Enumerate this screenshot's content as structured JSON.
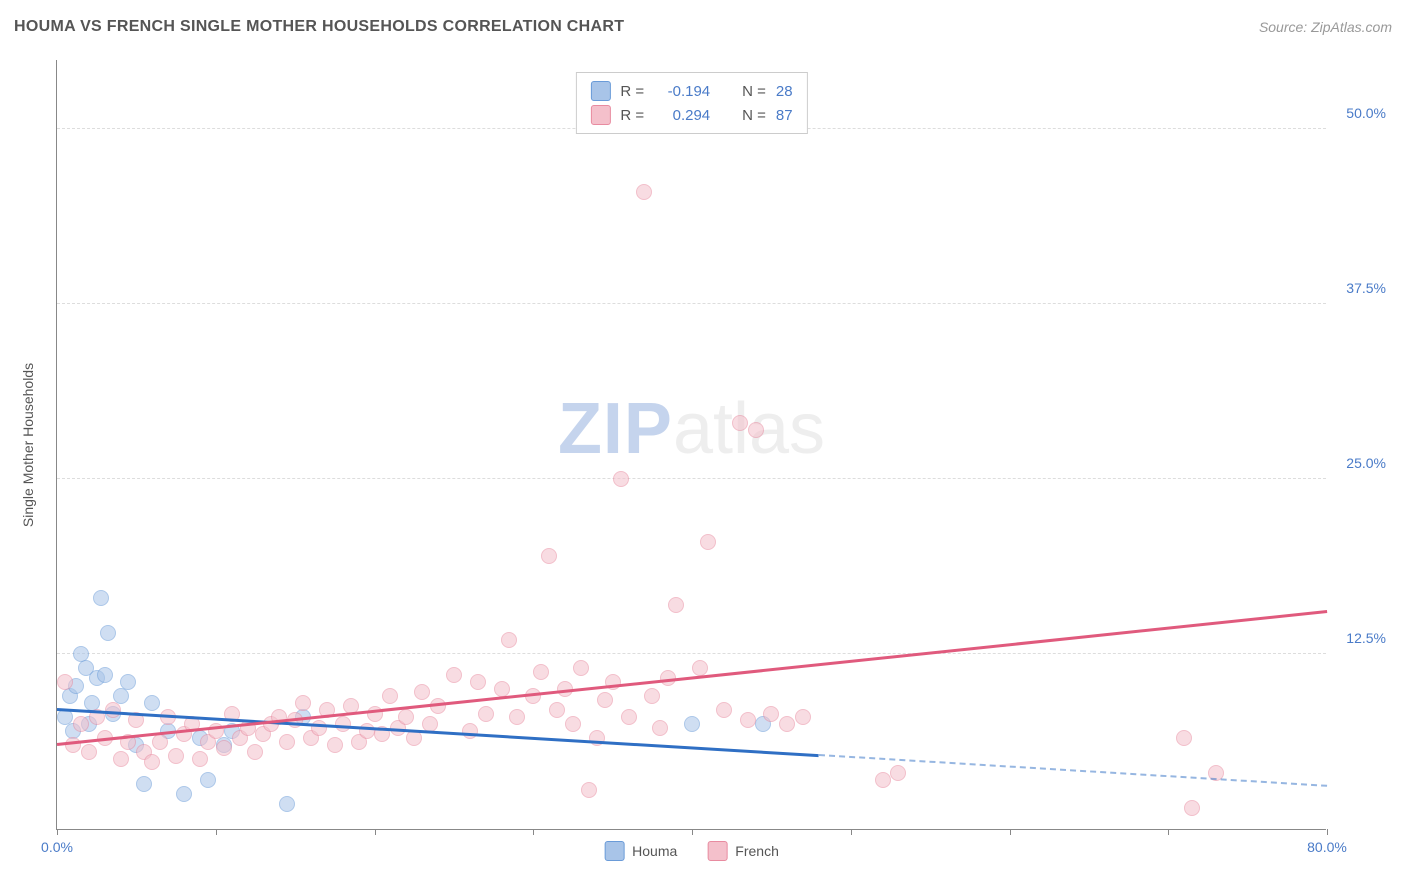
{
  "title": "HOUMA VS FRENCH SINGLE MOTHER HOUSEHOLDS CORRELATION CHART",
  "source": "Source: ZipAtlas.com",
  "watermark": {
    "zip": "ZIP",
    "atlas": "atlas"
  },
  "chart": {
    "type": "scatter",
    "background_color": "#ffffff",
    "grid_color": "#dddddd",
    "axis_color": "#888888",
    "ylabel": "Single Mother Households",
    "label_fontsize": 14,
    "xlim": [
      0,
      80
    ],
    "ylim": [
      0,
      55
    ],
    "x_ticks": [
      0,
      10,
      20,
      30,
      40,
      50,
      60,
      70,
      80
    ],
    "x_tick_labels": {
      "0": "0.0%",
      "80": "80.0%"
    },
    "y_ticks": [
      12.5,
      25.0,
      37.5,
      50.0
    ],
    "y_tick_labels": [
      "12.5%",
      "25.0%",
      "37.5%",
      "50.0%"
    ],
    "point_radius": 8,
    "point_opacity": 0.55,
    "line_width": 2.5,
    "series": {
      "houma": {
        "label": "Houma",
        "color_fill": "#a8c4e8",
        "color_stroke": "#6a9bd8",
        "r_value": "-0.194",
        "n_value": "28",
        "trend": {
          "x1": 0,
          "y1": 8.5,
          "x2": 80,
          "y2": 3.0,
          "solid_until_x": 48,
          "color": "#2f6fc4"
        },
        "points": [
          [
            0.5,
            8.0
          ],
          [
            0.8,
            9.5
          ],
          [
            1.0,
            7.0
          ],
          [
            1.2,
            10.2
          ],
          [
            1.5,
            12.5
          ],
          [
            1.8,
            11.5
          ],
          [
            2.0,
            7.5
          ],
          [
            2.2,
            9.0
          ],
          [
            2.5,
            10.8
          ],
          [
            2.8,
            16.5
          ],
          [
            3.0,
            11.0
          ],
          [
            3.2,
            14.0
          ],
          [
            3.5,
            8.2
          ],
          [
            4.0,
            9.5
          ],
          [
            4.5,
            10.5
          ],
          [
            5.0,
            6.0
          ],
          [
            5.5,
            3.2
          ],
          [
            6.0,
            9.0
          ],
          [
            7.0,
            7.0
          ],
          [
            8.0,
            2.5
          ],
          [
            9.0,
            6.5
          ],
          [
            9.5,
            3.5
          ],
          [
            10.5,
            6.0
          ],
          [
            11.0,
            7.0
          ],
          [
            14.5,
            1.8
          ],
          [
            15.5,
            8.0
          ],
          [
            40.0,
            7.5
          ],
          [
            44.5,
            7.5
          ]
        ]
      },
      "french": {
        "label": "French",
        "color_fill": "#f4c0cb",
        "color_stroke": "#e88ba0",
        "r_value": "0.294",
        "n_value": "87",
        "trend": {
          "x1": 0,
          "y1": 6.0,
          "x2": 80,
          "y2": 15.5,
          "solid_until_x": 80,
          "color": "#e05a7d"
        },
        "points": [
          [
            0.5,
            10.5
          ],
          [
            1.0,
            6.0
          ],
          [
            1.5,
            7.5
          ],
          [
            2.0,
            5.5
          ],
          [
            2.5,
            8.0
          ],
          [
            3.0,
            6.5
          ],
          [
            3.5,
            8.5
          ],
          [
            4.0,
            5.0
          ],
          [
            4.5,
            6.2
          ],
          [
            5.0,
            7.8
          ],
          [
            5.5,
            5.5
          ],
          [
            6.0,
            4.8
          ],
          [
            6.5,
            6.2
          ],
          [
            7.0,
            8.0
          ],
          [
            7.5,
            5.2
          ],
          [
            8.0,
            6.8
          ],
          [
            8.5,
            7.5
          ],
          [
            9.0,
            5.0
          ],
          [
            9.5,
            6.2
          ],
          [
            10.0,
            7.0
          ],
          [
            10.5,
            5.8
          ],
          [
            11.0,
            8.2
          ],
          [
            11.5,
            6.5
          ],
          [
            12.0,
            7.2
          ],
          [
            12.5,
            5.5
          ],
          [
            13.0,
            6.8
          ],
          [
            13.5,
            7.5
          ],
          [
            14.0,
            8.0
          ],
          [
            14.5,
            6.2
          ],
          [
            15.0,
            7.8
          ],
          [
            15.5,
            9.0
          ],
          [
            16.0,
            6.5
          ],
          [
            16.5,
            7.2
          ],
          [
            17.0,
            8.5
          ],
          [
            17.5,
            6.0
          ],
          [
            18.0,
            7.5
          ],
          [
            18.5,
            8.8
          ],
          [
            19.0,
            6.2
          ],
          [
            19.5,
            7.0
          ],
          [
            20.0,
            8.2
          ],
          [
            20.5,
            6.8
          ],
          [
            21.0,
            9.5
          ],
          [
            21.5,
            7.2
          ],
          [
            22.0,
            8.0
          ],
          [
            22.5,
            6.5
          ],
          [
            23.0,
            9.8
          ],
          [
            23.5,
            7.5
          ],
          [
            24.0,
            8.8
          ],
          [
            25.0,
            11.0
          ],
          [
            26.0,
            7.0
          ],
          [
            26.5,
            10.5
          ],
          [
            27.0,
            8.2
          ],
          [
            28.0,
            10.0
          ],
          [
            28.5,
            13.5
          ],
          [
            29.0,
            8.0
          ],
          [
            30.0,
            9.5
          ],
          [
            30.5,
            11.2
          ],
          [
            31.0,
            19.5
          ],
          [
            31.5,
            8.5
          ],
          [
            32.0,
            10.0
          ],
          [
            32.5,
            7.5
          ],
          [
            33.0,
            11.5
          ],
          [
            33.5,
            2.8
          ],
          [
            34.0,
            6.5
          ],
          [
            34.5,
            9.2
          ],
          [
            35.0,
            10.5
          ],
          [
            35.5,
            25.0
          ],
          [
            36.0,
            8.0
          ],
          [
            37.0,
            45.5
          ],
          [
            37.5,
            9.5
          ],
          [
            38.0,
            7.2
          ],
          [
            38.5,
            10.8
          ],
          [
            39.0,
            16.0
          ],
          [
            40.5,
            11.5
          ],
          [
            41.0,
            20.5
          ],
          [
            42.0,
            8.5
          ],
          [
            43.0,
            29.0
          ],
          [
            43.5,
            7.8
          ],
          [
            44.0,
            28.5
          ],
          [
            45.0,
            8.2
          ],
          [
            46.0,
            7.5
          ],
          [
            47.0,
            8.0
          ],
          [
            52.0,
            3.5
          ],
          [
            53.0,
            4.0
          ],
          [
            71.0,
            6.5
          ],
          [
            71.5,
            1.5
          ],
          [
            73.0,
            4.0
          ]
        ]
      }
    },
    "legend_top": {
      "r_label": "R =",
      "n_label": "N ="
    },
    "legend_bottom_order": [
      "houma",
      "french"
    ]
  }
}
